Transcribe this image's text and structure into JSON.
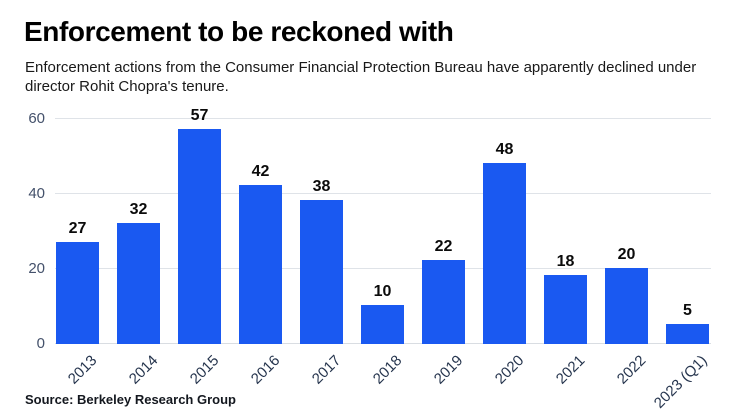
{
  "header": {
    "title": "Enforcement to be reckoned with",
    "subtitle": "Enforcement actions from the Consumer Financial Protection Bureau have apparently declined under director Rohit Chopra's tenure."
  },
  "source": {
    "label": "Source: Berkeley Research Group"
  },
  "colors": {
    "bar": "#1a59f1",
    "gridline": "#dfe3e8",
    "baseline": "#d9dde2",
    "y_tick_label": "#44516b",
    "x_tick_label": "#26354e",
    "value_label": "#0b0b0b"
  },
  "chart_data": {
    "type": "bar",
    "title": "Enforcement to be reckoned with",
    "subtitle": "Enforcement actions from the Consumer Financial Protection Bureau have apparently declined under director Rohit Chopra's tenure.",
    "categories": [
      "2013",
      "2014",
      "2015",
      "2016",
      "2017",
      "2018",
      "2019",
      "2020",
      "2021",
      "2022",
      "2023 (Q1)"
    ],
    "values": [
      27,
      32,
      57,
      42,
      38,
      10,
      22,
      48,
      18,
      20,
      5
    ],
    "value_labels_shown": true,
    "xlabel": "",
    "ylabel": "",
    "ylim": [
      0,
      60
    ],
    "yticks": [
      0,
      20,
      40,
      60
    ],
    "grid": "horizontal",
    "legend": "none",
    "x_label_rotation_deg": -45,
    "source": "Source: Berkeley Research Group"
  }
}
